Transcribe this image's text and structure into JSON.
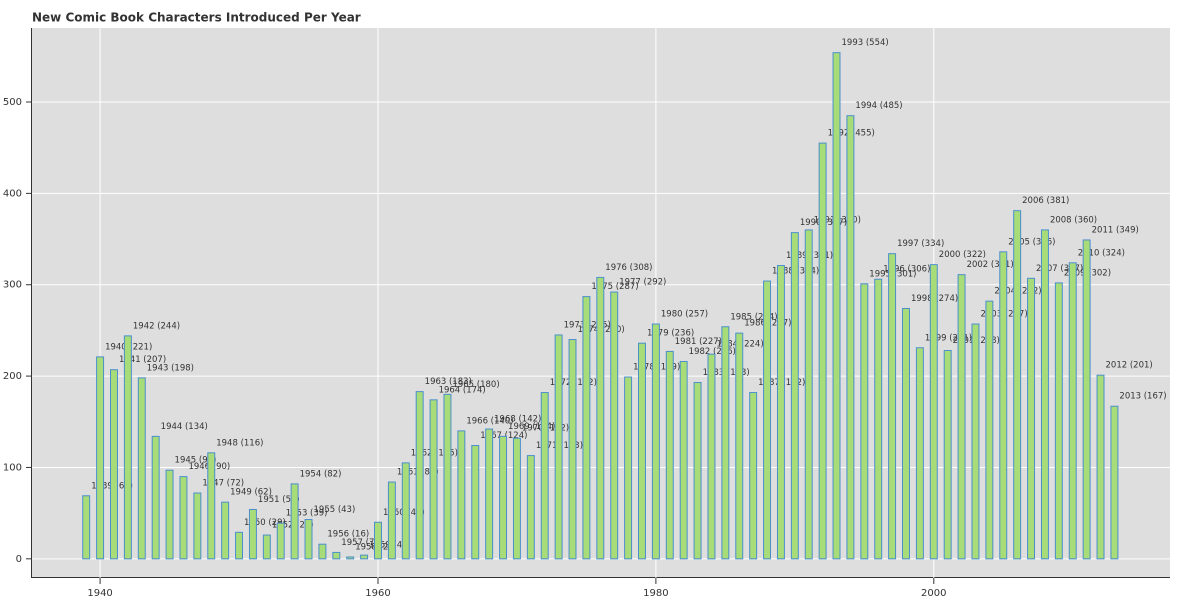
{
  "chart_data": {
    "type": "bar",
    "title": "New Comic Book Characters Introduced Per Year",
    "x": [
      1939,
      1940,
      1941,
      1942,
      1943,
      1944,
      1945,
      1946,
      1947,
      1948,
      1949,
      1950,
      1951,
      1952,
      1953,
      1954,
      1955,
      1956,
      1957,
      1958,
      1959,
      1960,
      1961,
      1962,
      1963,
      1964,
      1965,
      1966,
      1967,
      1968,
      1969,
      1970,
      1971,
      1972,
      1973,
      1974,
      1975,
      1976,
      1977,
      1978,
      1979,
      1980,
      1981,
      1982,
      1983,
      1984,
      1985,
      1986,
      1987,
      1988,
      1989,
      1990,
      1991,
      1992,
      1993,
      1994,
      1995,
      1996,
      1997,
      1998,
      1999,
      2000,
      2001,
      2002,
      2003,
      2004,
      2005,
      2006,
      2007,
      2008,
      2009,
      2010,
      2011,
      2012,
      2013
    ],
    "values": [
      69,
      221,
      207,
      244,
      198,
      134,
      97,
      90,
      72,
      116,
      62,
      29,
      54,
      26,
      39,
      82,
      43,
      16,
      7,
      2,
      4,
      40,
      84,
      105,
      183,
      174,
      180,
      140,
      124,
      142,
      134,
      132,
      113,
      182,
      245,
      240,
      287,
      308,
      292,
      199,
      236,
      257,
      227,
      216,
      193,
      224,
      254,
      247,
      182,
      304,
      321,
      357,
      360,
      455,
      554,
      485,
      301,
      306,
      334,
      274,
      231,
      322,
      228,
      311,
      257,
      282,
      336,
      381,
      307,
      360,
      302,
      324,
      349,
      201,
      167
    ],
    "value_labels": [
      "1939 (69)",
      "1940 (221)",
      "1941 (207)",
      "1942 (244)",
      "1943 (198)",
      "1944 (134)",
      "1945 (97)",
      "1946 (90)",
      "1947 (72)",
      "1948 (116)",
      "1949 (62)",
      "1950 (29)",
      "1951 (54)",
      "1952 (26)",
      "1953 (39)",
      "1954 (82)",
      "1955 (43)",
      "1956 (16)",
      "1957 (7)",
      "1958 (2)",
      "1959 (4)",
      "1960 (40)",
      "1961 (84)",
      "1962 (105)",
      "1963 (183)",
      "1964 (174)",
      "1965 (180)",
      "1966 (140)",
      "1967 (124)",
      "1968 (142)",
      "1969 (134)",
      "1970 (132)",
      "1971 (113)",
      "1972 (182)",
      "1973 (245)",
      "1974 (240)",
      "1975 (287)",
      "1976 (308)",
      "1977 (292)",
      "1978 (199)",
      "1979 (236)",
      "1980 (257)",
      "1981 (227)",
      "1982 (216)",
      "1983 (193)",
      "1984 (224)",
      "1985 (254)",
      "1986 (247)",
      "1987 (182)",
      "1988 (304)",
      "1989 (321)",
      "1990 (357)",
      "1991 (360)",
      "1992 (455)",
      "1993 (554)",
      "1994 (485)",
      "1995 (301)",
      "1996 (306)",
      "1997 (334)",
      "1998 (274)",
      "1999 (231)",
      "2000 (322)",
      "2001 (228)",
      "2002 (311)",
      "2003 (257)",
      "2004 (282)",
      "2005 (336)",
      "2006 (381)",
      "2007 (307)",
      "2008 (360)",
      "2009 (302)",
      "2010 (324)",
      "2011 (349)",
      "2012 (201)",
      "2013 (167)"
    ],
    "color": "#a8dc78",
    "edge_color": "#4a8fcc",
    "xlim": [
      1935.1,
      2017
    ],
    "xticks": [
      1940,
      1960,
      1980,
      2000
    ],
    "ylim": [
      -21,
      581
    ],
    "yticks": [
      0,
      100,
      200,
      300,
      400,
      500
    ],
    "grid": true
  }
}
